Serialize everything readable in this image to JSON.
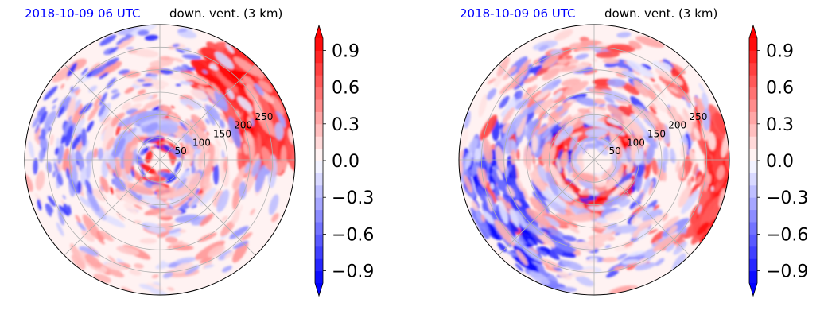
{
  "chart_data": [
    {
      "type": "heatmap",
      "projection": "polar",
      "title_left": "2018-10-09 06 UTC",
      "title_right": "down. vent. (3 km)",
      "title_left_color": "#0000ff",
      "radial_ticks": [
        "50",
        "100",
        "150",
        "200",
        "250"
      ],
      "radial_tick_values": [
        50,
        100,
        150,
        200,
        250
      ],
      "r_max": 300,
      "angular_gridlines_deg": [
        0,
        45,
        90,
        135,
        180,
        225,
        270,
        315
      ],
      "grid": true,
      "colorbar": {
        "ticks": [
          "0.9",
          "0.6",
          "0.3",
          "0.0",
          "−0.3",
          "−0.6",
          "−0.9"
        ],
        "tick_values": [
          0.9,
          0.6,
          0.3,
          0.0,
          -0.3,
          -0.6,
          -0.9
        ],
        "vmin": -1.0,
        "vmax": 1.0,
        "levels": 20,
        "extend": "both",
        "cmap": "bwr",
        "low_color": "#0000ff",
        "high_color": "#ff0000"
      },
      "pattern": "red_northeast"
    },
    {
      "type": "heatmap",
      "projection": "polar",
      "title_left": "2018-10-09 06 UTC",
      "title_right": "down. vent. (3 km)",
      "title_left_color": "#0000ff",
      "radial_ticks": [
        "50",
        "100",
        "150",
        "200",
        "250"
      ],
      "radial_tick_values": [
        50,
        100,
        150,
        200,
        250
      ],
      "r_max": 300,
      "angular_gridlines_deg": [
        0,
        45,
        90,
        135,
        180,
        225,
        270,
        315
      ],
      "grid": true,
      "colorbar": {
        "ticks": [
          "0.9",
          "0.6",
          "0.3",
          "0.0",
          "−0.3",
          "−0.6",
          "−0.9"
        ],
        "tick_values": [
          0.9,
          0.6,
          0.3,
          0.0,
          -0.3,
          -0.6,
          -0.9
        ],
        "vmin": -1.0,
        "vmax": 1.0,
        "levels": 20,
        "extend": "both",
        "cmap": "bwr",
        "low_color": "#0000ff",
        "high_color": "#ff0000"
      },
      "pattern": "red_inner_ring_blue_southwest"
    }
  ]
}
